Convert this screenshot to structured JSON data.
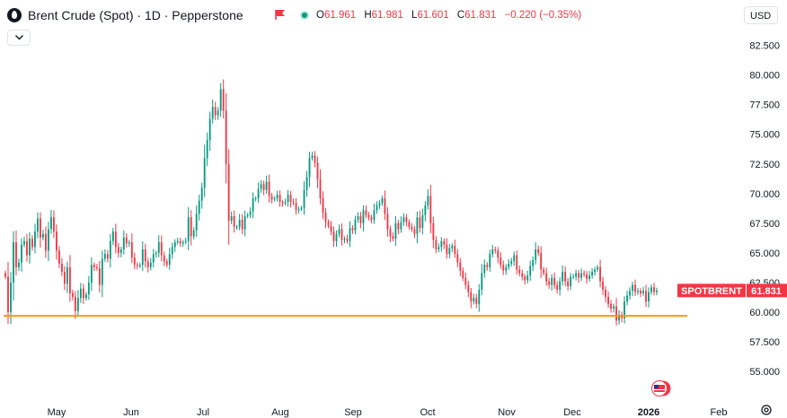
{
  "header": {
    "title": "Brent Crude (Spot) · 1D · Pepperstone",
    "ohlc": {
      "open_label": "O",
      "open": "61.961",
      "high_label": "H",
      "high": "61.981",
      "low_label": "L",
      "low": "61.601",
      "close_label": "C",
      "close": "61.831",
      "change": "−0.220 (−0.35%)"
    },
    "currency": "USD"
  },
  "price_tag": {
    "symbol": "SPOTBRENT",
    "value": "61.831",
    "color": "#f23645"
  },
  "colors": {
    "up": "#089981",
    "down": "#f23645",
    "support_line": "#ff9800"
  },
  "chart_data": {
    "type": "candlestick",
    "y_axis": {
      "ticks": [
        "82.500",
        "80.000",
        "77.500",
        "75.000",
        "72.500",
        "70.000",
        "67.500",
        "65.000",
        "62.500",
        "60.000",
        "57.500",
        "55.000"
      ],
      "range": [
        52.9,
        83.6
      ]
    },
    "x_axis": {
      "ticks": [
        "May",
        "Jun",
        "Jul",
        "Aug",
        "Sep",
        "Oct",
        "Nov",
        "Dec",
        "2026",
        "Feb"
      ],
      "bold_tick": "2026"
    },
    "support_line": {
      "price": 59.7,
      "color": "#ff9800"
    },
    "last_price": 61.831,
    "candles_close": [
      63.0,
      60.0,
      62.5,
      65.9,
      63.8,
      64.2,
      65.7,
      66.0,
      64.8,
      66.2,
      65.5,
      66.8,
      67.9,
      66.3,
      66.6,
      65.2,
      67.0,
      68.0,
      66.8,
      65.2,
      64.1,
      63.4,
      62.4,
      63.8,
      61.6,
      61.3,
      60.1,
      61.2,
      62.0,
      61.2,
      61.5,
      62.5,
      64.0,
      63.8,
      63.7,
      62.3,
      64.5,
      64.9,
      64.5,
      66.0,
      66.8,
      65.5,
      65.0,
      65.3,
      66.3,
      65.8,
      65.9,
      64.6,
      64.0,
      63.9,
      64.0,
      65.3,
      64.3,
      63.8,
      64.2,
      64.9,
      65.0,
      65.9,
      64.8,
      64.3,
      64.0,
      64.9,
      65.5,
      65.9,
      66.0,
      65.8,
      65.9,
      66.0,
      68.0,
      66.4,
      66.9,
      68.3,
      69.4,
      70.5,
      73.0,
      74.5,
      76.3,
      77.3,
      76.6,
      77.0,
      78.8,
      77.0,
      72.5,
      67.7,
      68.1,
      67.2,
      67.2,
      67.8,
      67.0,
      68.1,
      68.2,
      68.5,
      69.6,
      69.6,
      70.4,
      70.8,
      70.3,
      71.0,
      69.8,
      69.5,
      69.6,
      69.9,
      69.3,
      69.2,
      69.3,
      69.9,
      69.3,
      69.2,
      68.6,
      68.7,
      68.8,
      70.3,
      71.4,
      73.0,
      73.2,
      72.6,
      71.2,
      69.6,
      68.4,
      67.6,
      67.3,
      66.8,
      66.0,
      66.6,
      67.0,
      66.1,
      66.2,
      66.0,
      67.1,
      66.9,
      67.8,
      68.1,
      67.5,
      68.6,
      68.2,
      68.0,
      67.8,
      68.6,
      69.0,
      69.2,
      69.6,
      68.3,
      67.0,
      66.4,
      66.2,
      67.5,
      67.0,
      67.6,
      68.0,
      67.6,
      67.2,
      67.0,
      66.6,
      68.0,
      67.1,
      68.2,
      69.0,
      69.8,
      67.5,
      66.1,
      65.3,
      65.5,
      66.0,
      65.7,
      64.9,
      65.4,
      65.6,
      64.9,
      64.2,
      63.5,
      62.9,
      62.3,
      61.7,
      60.9,
      61.2,
      60.7,
      61.9,
      63.3,
      64.0,
      63.8,
      64.9,
      65.3,
      65.2,
      64.6,
      64.0,
      63.5,
      63.8,
      64.1,
      64.3,
      64.8,
      63.6,
      63.3,
      63.0,
      62.7,
      63.1,
      63.9,
      64.4,
      65.3,
      65.0,
      63.6,
      63.3,
      62.6,
      62.3,
      62.9,
      62.3,
      61.9,
      62.6,
      63.4,
      62.6,
      62.2,
      63.0,
      63.0,
      63.3,
      62.9,
      63.3,
      63.2,
      62.8,
      63.1,
      63.4,
      63.6,
      63.8,
      62.6,
      61.9,
      61.3,
      60.7,
      60.3,
      60.5,
      59.3,
      59.8,
      59.5,
      60.9,
      61.4,
      61.8,
      62.3,
      61.7,
      61.8,
      61.6,
      61.8,
      60.9,
      61.7,
      62.1,
      61.7,
      61.831
    ]
  }
}
